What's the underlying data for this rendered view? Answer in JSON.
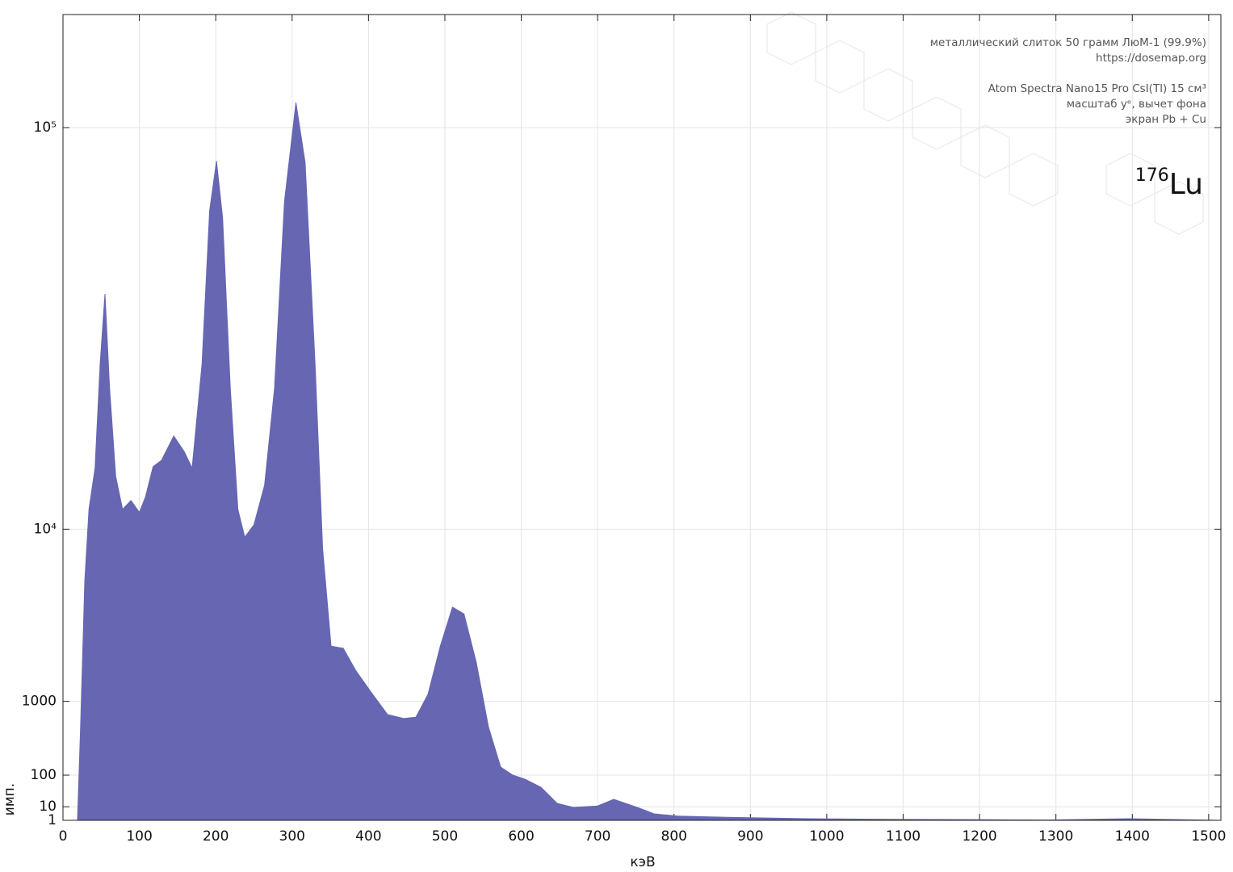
{
  "chart_data": {
    "type": "area",
    "x_label": "кэВ",
    "y_label": "имп.",
    "annotations": [
      "металлический слиток 50 грамм ЛюМ-1 (99.9%)",
      "https://dosemap.org",
      "Atom Spectra Nano15 Pro CsI(Tl) 15 см³",
      "масштаб yᵉ, вычет фона",
      "экран Pb + Cu"
    ],
    "isotope_label": {
      "mass": "176",
      "symbol": "Lu"
    },
    "color": "#6666b3",
    "yscale": "power-e",
    "xlim": [
      0,
      1516
    ],
    "xticks": [
      0,
      100,
      200,
      300,
      400,
      500,
      600,
      700,
      800,
      900,
      1000,
      1100,
      1200,
      1300,
      1400,
      1500
    ],
    "ylim": [
      1,
      150000
    ],
    "yticks": [
      1,
      10,
      100,
      1000,
      {
        "value": 10000,
        "label": "10⁴"
      },
      {
        "value": 100000,
        "label": "10⁵"
      }
    ],
    "grid": true,
    "x": [
      19,
      23,
      28.5,
      34,
      42,
      48.6,
      55,
      61,
      69,
      78,
      89,
      100,
      108,
      118,
      129,
      145,
      159,
      169,
      182,
      192,
      201,
      209,
      219,
      229,
      238,
      250,
      264,
      277,
      290,
      305,
      317,
      330,
      340,
      351,
      367,
      383,
      404,
      425,
      446,
      462,
      478,
      494,
      510,
      525,
      541,
      557,
      573,
      589,
      605,
      626,
      647,
      668,
      700,
      721,
      753,
      774,
      805,
      869,
      975,
      1080,
      1186,
      1291,
      1397,
      1461,
      1516
    ],
    "values": [
      1,
      551,
      6000,
      11900,
      16500,
      32800,
      48000,
      28400,
      15500,
      11900,
      12800,
      11600,
      13200,
      16700,
      17500,
      20800,
      18600,
      16500,
      32800,
      71000,
      87600,
      68800,
      28400,
      11900,
      9300,
      10400,
      14500,
      28400,
      73900,
      110000,
      87000,
      32800,
      8300,
      2630,
      2550,
      1800,
      1190,
      746,
      678,
      700,
      1160,
      2630,
      4430,
      4080,
      2060,
      551,
      145,
      100,
      81,
      51,
      14.4,
      9.3,
      11,
      20.9,
      9,
      3.8,
      2.6,
      2,
      1.5,
      1.3,
      1.2,
      1.1,
      1.5,
      1.2,
      1
    ]
  }
}
